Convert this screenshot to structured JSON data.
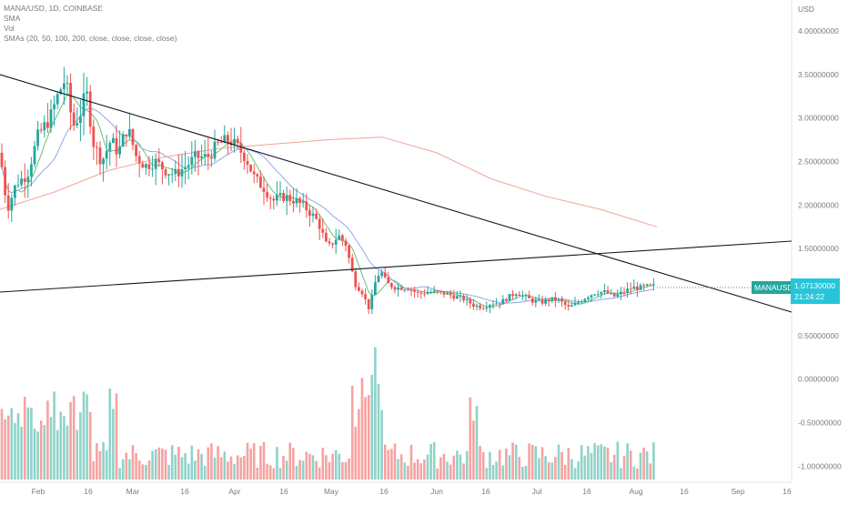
{
  "header": {
    "symbol_line": "MANA/USD, 1D, COINBASE",
    "indicator_1": "SMA",
    "indicator_2": "Vol",
    "indicator_3": "SMAs (20, 50, 100, 200, close, close, close, close)"
  },
  "price_axis": {
    "unit": "USD",
    "ticks": [
      "4.00000000",
      "3.50000000",
      "3.00000000",
      "2.50000000",
      "2.00000000",
      "1.50000000",
      "1.00000000",
      "0.50000000",
      "0.00000000",
      "-0.50000000",
      "-1.00000000"
    ],
    "tick_values": [
      4.0,
      3.5,
      3.0,
      2.5,
      2.0,
      1.5,
      1.0,
      0.5,
      0.0,
      -0.5,
      -1.0
    ]
  },
  "time_axis": {
    "labels": [
      "Feb",
      "16",
      "Mar",
      "16",
      "Apr",
      "16",
      "May",
      "16",
      "Jun",
      "16",
      "Jul",
      "16",
      "Aug",
      "16",
      "Sep",
      "16"
    ]
  },
  "last_price": {
    "symbol": "MANAUSD",
    "price": "1.07130000",
    "countdown": "21:24:22"
  },
  "colors": {
    "up": "#26a69a",
    "down": "#ef5350",
    "vol_up": "#8fd3c9",
    "vol_down": "#f5a3a1",
    "sma20": "#6bbf7a",
    "sma50": "#8fa8e8",
    "sma200": "#f2a39a",
    "trendline": "#131722",
    "price_box": "#26c6da"
  },
  "chart_data": {
    "type": "candlestick",
    "title": "MANA/USD, 1D, COINBASE",
    "ylim": [
      -1.05,
      4.1
    ],
    "trendlines": [
      {
        "name": "descending",
        "start": [
          "2021-01-24",
          3.5
        ],
        "end": [
          "2021-09-23",
          0.78
        ]
      },
      {
        "name": "ascending",
        "start": [
          "2021-01-24",
          1.0
        ],
        "end": [
          "2021-09-23",
          1.6
        ]
      }
    ],
    "sma_note": "SMA (20) green, SMA (50) blue, SMA (200) red",
    "last_close": 1.0713
  }
}
